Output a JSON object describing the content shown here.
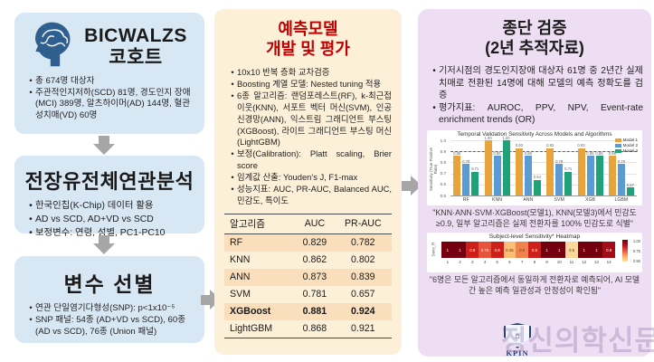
{
  "left_column": {
    "box1": {
      "title_line1": "BICWALZS",
      "title_line2": "코호트",
      "bullets": [
        "총 674명 대상자",
        "주관적인지저하(SCD) 81명, 경도인지 장애(MCI) 389명, 알츠하이머(AD) 144명, 혈관성치매(VD) 60명"
      ]
    },
    "box2": {
      "title": "전장유전체연관분석",
      "bullets": [
        "한국인칩(K-Chip) 데이터 활용",
        "AD vs SCD, AD+VD vs SCD",
        "보정변수: 연령, 성별, PC1-PC10"
      ]
    },
    "box3": {
      "title": "변수 선별",
      "bullets": [
        "연관 단일염기다형성(SNP): p<1x10⁻⁵",
        "SNP 패널: 54종 (AD+VD vs SCD), 60종 (AD vs SCD), 76종 (Union 패널)"
      ]
    }
  },
  "middle_column": {
    "title_line1": "예측모델",
    "title_line2": "개발 및 평가",
    "bullets": [
      "10x10 반복 층화 교차검증",
      "Boosting 계열 모델: Nested tuning 적용",
      "6종 알고리즘: 랜덤포레스트(RF), k-최근접 이웃(KNN), 서포트 벡터 머신(SVM), 인공 신경망(ANN), 익스트림 그래디언트 부스팅(XGBoost), 라이트 그래디언트 부스팅 머신(LightGBM)",
      "보정(Calibration): Platt scaling, Brier score",
      "임계값 산출: Youden's J, F1-max",
      "성능지표: AUC, PR-AUC, Balanced AUC, 민감도, 특이도"
    ],
    "table": {
      "headers": [
        "알고리즘",
        "AUC",
        "PR-AUC"
      ],
      "rows": [
        {
          "name": "RF",
          "auc": "0.829",
          "pr_auc": "0.782",
          "shaded": true,
          "bold": false
        },
        {
          "name": "KNN",
          "auc": "0.862",
          "pr_auc": "0.802",
          "shaded": false,
          "bold": false
        },
        {
          "name": "ANN",
          "auc": "0.873",
          "pr_auc": "0.839",
          "shaded": true,
          "bold": false
        },
        {
          "name": "SVM",
          "auc": "0.781",
          "pr_auc": "0.657",
          "shaded": false,
          "bold": false
        },
        {
          "name": "XGBoost",
          "auc": "0.881",
          "pr_auc": "0.924",
          "shaded": true,
          "bold": true
        },
        {
          "name": "LightGBM",
          "auc": "0.868",
          "pr_auc": "0.921",
          "shaded": false,
          "bold": false
        }
      ]
    }
  },
  "right_column": {
    "title_line1": "종단 검증",
    "title_line2": "(2년 추적자료)",
    "bullets": [
      "기저시점의 경도인지장애 대상자 61명 중 2년간 실제 치매로 전환된 14명에 대해 모델의 예측 정확도를 검증",
      "평가지표: AUROC, PPV, NPV, Event-rate enrichment trends (OR)"
    ],
    "chart_caption": "\"KNN·ANN·SVM·XGBoost(모델1), KNN(모델3)에서 민감도 ≥0.9, 일부 알고리즘은 실제 전환자를 100% 민감도로 식별\"",
    "heatmap_caption": "\"6명은 모든 알고리즘에서 동일하게 전환자로 예측되어, AI 모델 간 높은 예측 일관성과 안정성이 확인됨\""
  },
  "watermark": {
    "logo_text": "KPIN",
    "text": "정신의학신문"
  },
  "colors": {
    "left_box": "#d8e7f4",
    "middle_box": "#fdf0d9",
    "right_box": "#eedef3",
    "middle_title": "#c00000",
    "table_shaded_row": "#fbdfbd",
    "arrow": "#a6a6a6",
    "brain_icon": "#2e5f8f"
  },
  "chart_data": [
    {
      "type": "bar",
      "title": "Temporal Validation Sensitivity Across Models and Algorithms",
      "ylabel": "Sensitivity (True Positive Rate)",
      "categories": [
        "RF",
        "KNN",
        "ANN",
        "SVM",
        "XGB",
        "LGBM"
      ],
      "series": [
        {
          "name": "Model 1",
          "color": "#E8A33D",
          "values": [
            0.857,
            1.0,
            0.929,
            0.929,
            0.929,
            0.857
          ]
        },
        {
          "name": "Model 2",
          "color": "#5B9BD5",
          "values": [
            0.786,
            0.857,
            0.857,
            0.786,
            0.857,
            0.786
          ]
        },
        {
          "name": "Model 3",
          "color": "#1FA179",
          "values": [
            0.714,
            1.0,
            0.643,
            0.714,
            0.857,
            0.571
          ]
        }
      ],
      "ylim": [
        0.5,
        1.0
      ],
      "yticks": [
        0.5,
        0.6,
        0.7,
        0.8,
        0.9,
        1.0
      ],
      "reference_line": 0.9,
      "legend_position": "top-right",
      "grid": true
    },
    {
      "type": "heatmap",
      "title": "Subject-level Sensitivity* Heatmap",
      "ylabel": "Sens_R",
      "x": [
        "1",
        "2",
        "3",
        "4",
        "5",
        "6",
        "7",
        "8",
        "9",
        "10",
        "11",
        "12",
        "13",
        "14"
      ],
      "values": [
        "1",
        "1",
        "0.8",
        "0.75",
        "0.8",
        "0.45",
        "0.6",
        "0.8",
        "1",
        "1",
        "0.5",
        "1",
        "1",
        "0.9"
      ],
      "colorbar_ticks": [
        "1.00",
        "0.75",
        "0.50"
      ]
    }
  ]
}
